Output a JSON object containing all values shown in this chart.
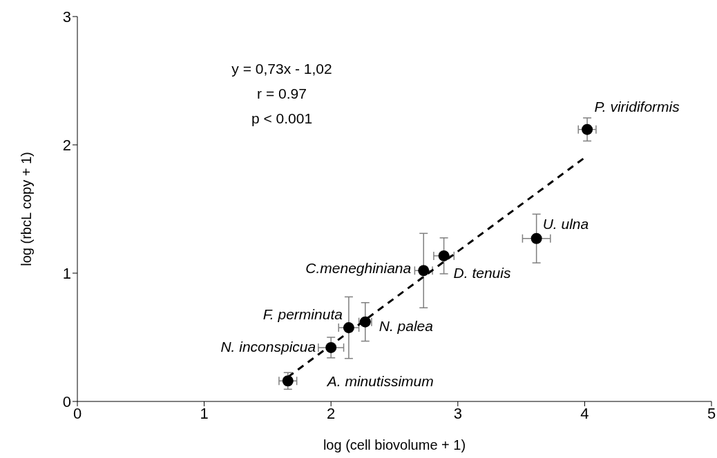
{
  "chart_data": {
    "type": "scatter",
    "xlabel": "log (cell biovolume + 1)",
    "ylabel": "log (rbcL copy + 1)",
    "xlim": [
      0,
      5
    ],
    "xticks": [
      0,
      1,
      2,
      3,
      4,
      5
    ],
    "ylim": [
      0,
      3
    ],
    "yticks": [
      0,
      1,
      2,
      3
    ],
    "grid": false,
    "legend": false,
    "marker": "circle",
    "series": [
      {
        "color": "#000000",
        "x": [
          1.66,
          2.0,
          2.14,
          2.27,
          2.73,
          2.89,
          3.62,
          4.02
        ],
        "values": [
          0.16,
          0.42,
          0.575,
          0.62,
          1.02,
          1.135,
          1.27,
          2.12
        ],
        "errors": [
          0.065,
          0.08,
          0.24,
          0.15,
          0.29,
          0.14,
          0.19,
          0.09
        ],
        "xerrors": [
          0.07,
          0.1,
          0.08,
          0.05,
          0.07,
          0.08,
          0.11,
          0.07
        ]
      },
      {
        "type": "line",
        "color": "#000000",
        "line_style": "dashed",
        "marker": "none",
        "x": [
          1.66,
          4.0
        ],
        "values": [
          0.19,
          1.9
        ]
      }
    ],
    "annotations": [
      {
        "text": "A. minutissimum",
        "x": 1.66,
        "y": 0.16
      },
      {
        "text": "N. inconspicua",
        "x": 2.0,
        "y": 0.42
      },
      {
        "text": "F. perminuta",
        "x": 2.14,
        "y": 0.575
      },
      {
        "text": "N. palea",
        "x": 2.27,
        "y": 0.62
      },
      {
        "text": "C.meneghiniana",
        "x": 2.73,
        "y": 1.02
      },
      {
        "text": "D. tenuis",
        "x": 2.89,
        "y": 1.135
      },
      {
        "text": "U. ulna",
        "x": 3.62,
        "y": 1.27
      },
      {
        "text": "P. viridiformis",
        "x": 4.02,
        "y": 2.12
      },
      "y = 0,73x - 1,02",
      "r = 0.97",
      "p < 0.001"
    ]
  }
}
